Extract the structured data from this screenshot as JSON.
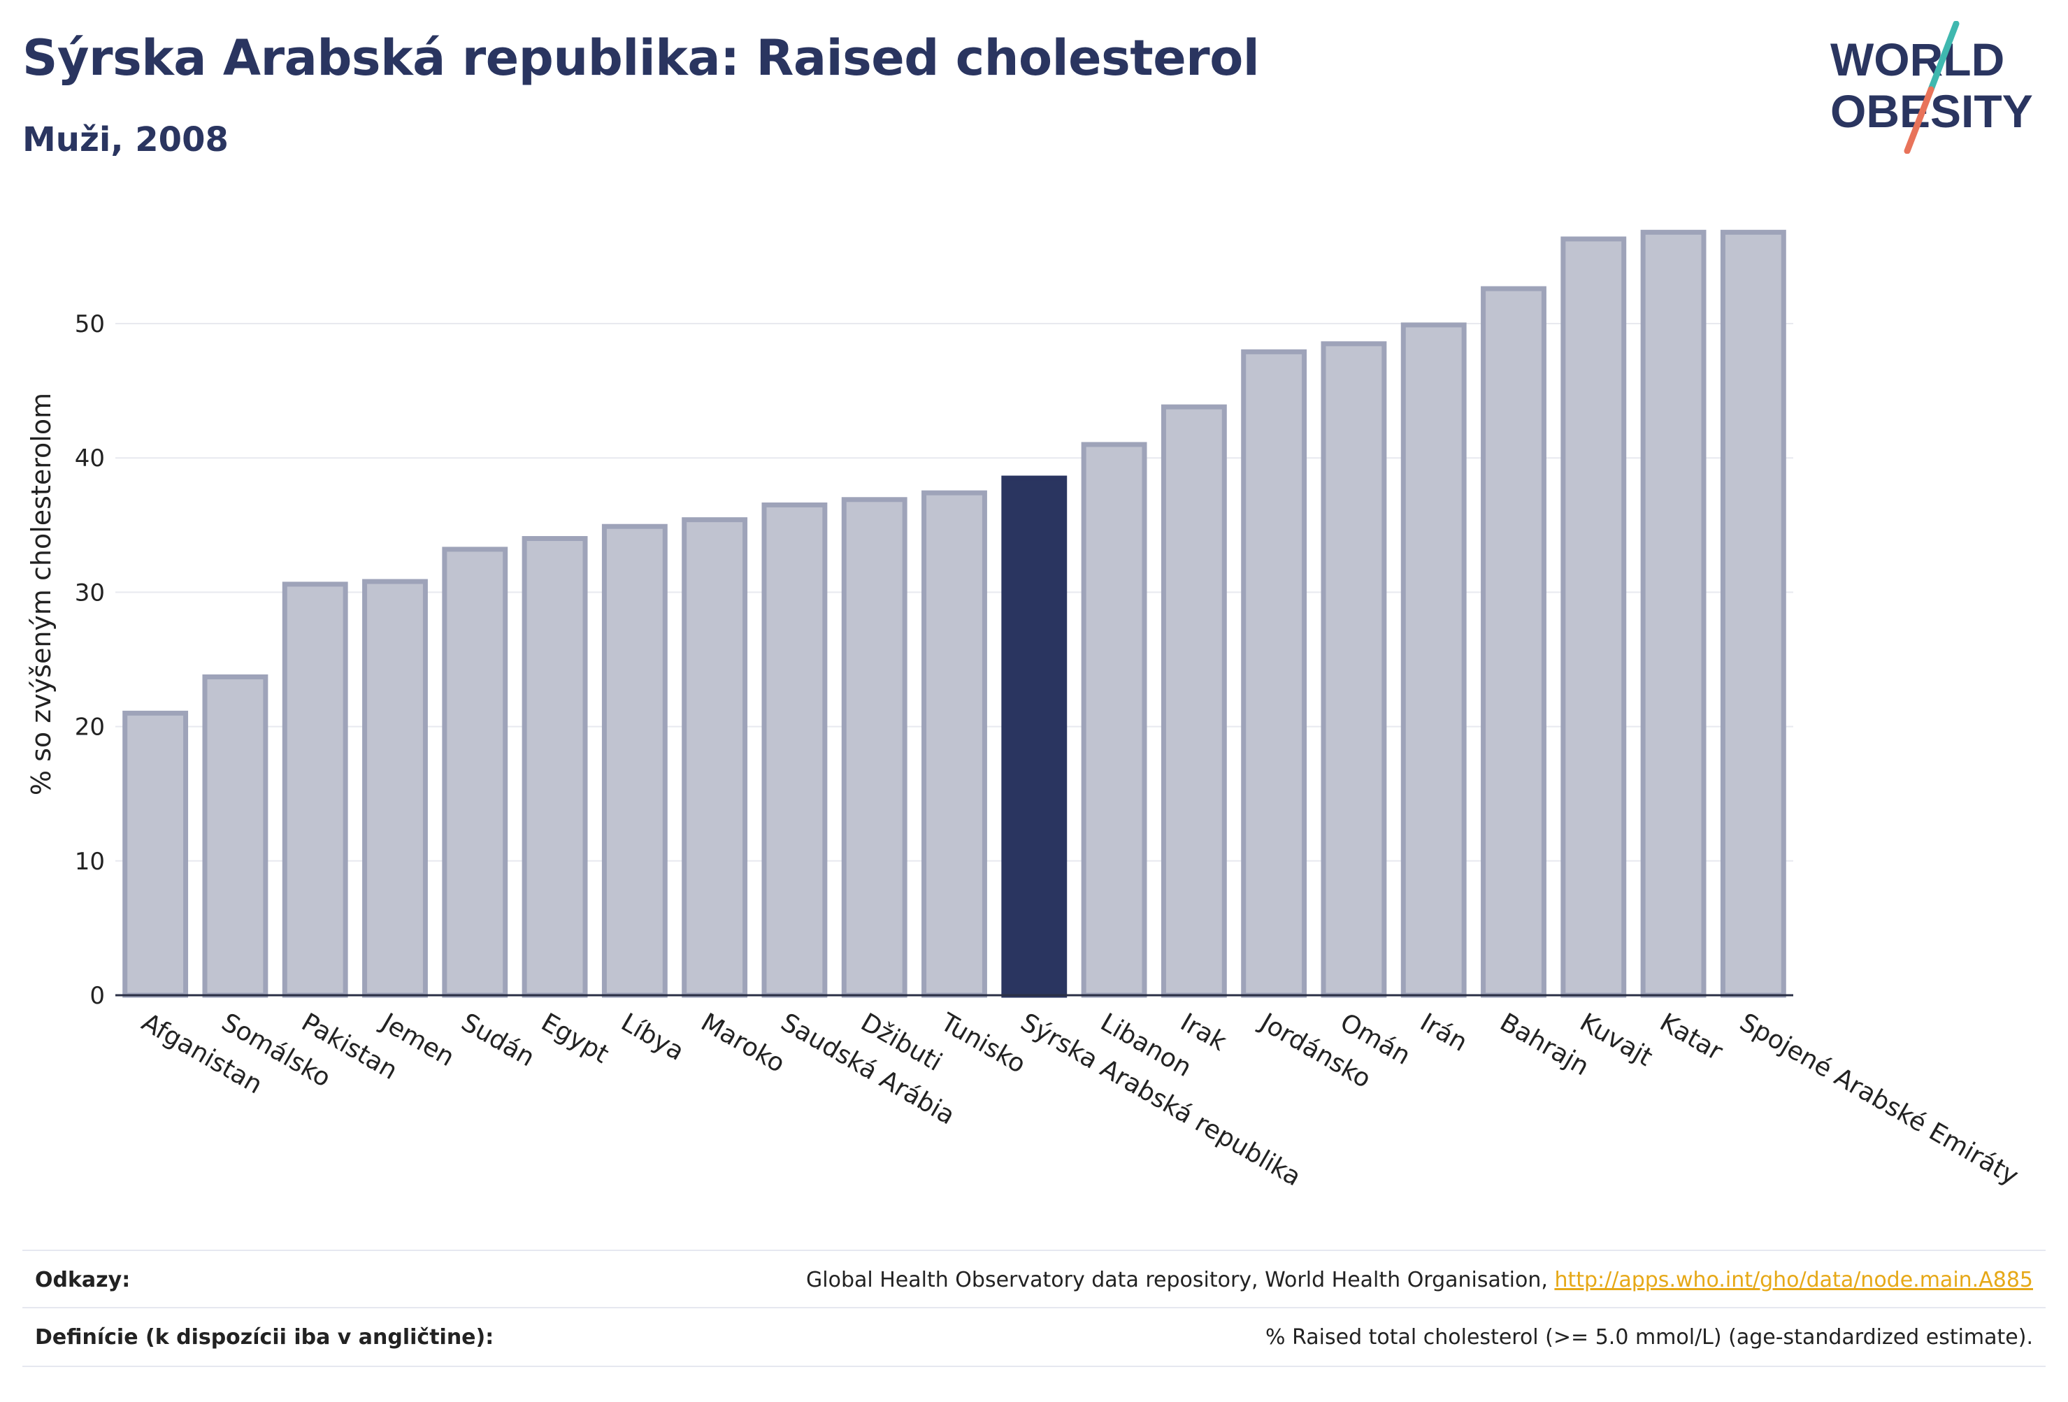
{
  "header": {
    "title": "Sýrska Arabská republika: Raised cholesterol",
    "subtitle": "Muži, 2008"
  },
  "logo": {
    "line1": "WORLD",
    "line2": "OBESITY",
    "colors": {
      "text": "#2a3560",
      "slash_top": "#3fb8af",
      "slash_bottom": "#e8735a"
    }
  },
  "colors": {
    "bar_default": "#c0c3d0",
    "bar_border": "#9ea3b9",
    "bar_highlight": "#2a3560",
    "grid": "#e8e9ef",
    "axis_text": "#222222"
  },
  "chart_data": {
    "type": "bar",
    "title": "",
    "xlabel": "",
    "ylabel": "% so zvýšeným cholesterolom",
    "ylim": [
      0,
      58
    ],
    "yticks": [
      0,
      10,
      20,
      30,
      40,
      50
    ],
    "grid": true,
    "highlight": "Sýrska Arabská republika",
    "categories": [
      "Afganistan",
      "Somálsko",
      "Pakistan",
      "Jemen",
      "Sudán",
      "Egypt",
      "Líbya",
      "Maroko",
      "Saudská Arábia",
      "Džibuti",
      "Tunisko",
      "Sýrska Arabská republika",
      "Libanon",
      "Irak",
      "Jordánsko",
      "Omán",
      "Irán",
      "Bahrajn",
      "Kuvajt",
      "Katar",
      "Spojené Arabské Emiráty"
    ],
    "values": [
      21.0,
      23.7,
      30.6,
      30.8,
      33.2,
      34.0,
      34.9,
      35.4,
      36.5,
      36.9,
      37.4,
      38.5,
      41.0,
      43.8,
      47.9,
      48.5,
      49.9,
      52.6,
      56.3,
      56.8,
      56.8
    ]
  },
  "footer": {
    "sources_label": "Odkazy:",
    "sources_text": "Global Health Observatory data repository, World Health Organisation, ",
    "sources_link": "http://apps.who.int/gho/data/node.main.A885",
    "definitions_label": "Definície (k dispozícii iba v angličtine):",
    "definitions_text": "% Raised total cholesterol (>= 5.0 mmol/L) (age-standardized estimate)."
  }
}
